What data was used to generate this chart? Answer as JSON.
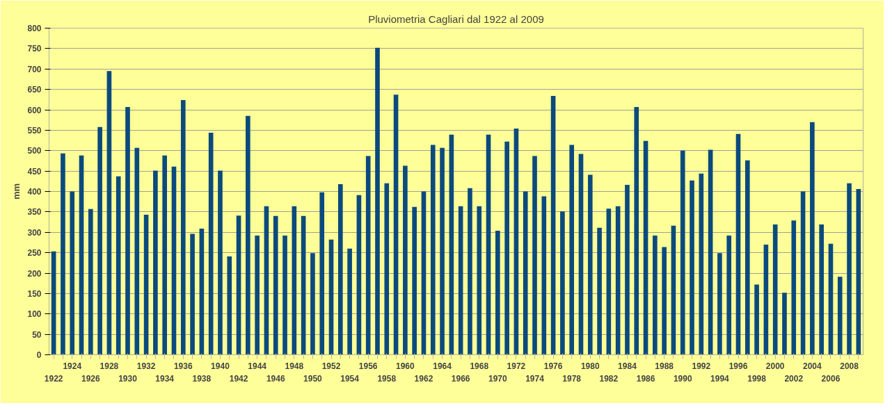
{
  "chart_data": {
    "type": "bar",
    "title": "Pluviometria Cagliari dal 1922 al 2009",
    "ylabel": "mm",
    "color": "#0b4a7d",
    "categories": [
      "1922",
      null,
      "1924",
      null,
      "1926",
      null,
      "1928",
      null,
      "1930",
      null,
      "1932",
      null,
      "1934",
      null,
      "1936",
      null,
      "1938",
      null,
      "1940",
      null,
      "1942",
      null,
      "1944",
      null,
      "1946",
      null,
      "1948",
      null,
      "1950",
      null,
      "1952",
      null,
      "1954",
      null,
      "1956",
      null,
      "1958",
      null,
      "1960",
      null,
      "1962",
      null,
      "1964",
      null,
      "1966",
      null,
      "1968",
      null,
      "1970",
      null,
      "1972",
      null,
      "1974",
      null,
      "1976",
      null,
      "1978",
      null,
      "1980",
      null,
      "1982",
      null,
      "1984",
      null,
      "1986",
      null,
      "1988",
      null,
      "1990",
      null,
      "1992",
      null,
      "1994",
      null,
      "1996",
      null,
      "1998",
      null,
      "2000",
      null,
      "2002",
      null,
      "2004",
      null,
      "2006",
      null,
      "2008",
      null
    ],
    "values": [
      253,
      493,
      400,
      488,
      357,
      558,
      695,
      437,
      607,
      507,
      343,
      451,
      488,
      461,
      624,
      296,
      309,
      544,
      451,
      241,
      341,
      585,
      292,
      364,
      340,
      292,
      364,
      340,
      249,
      398,
      282,
      418,
      260,
      391,
      487,
      752,
      420,
      637,
      463,
      362,
      400,
      514,
      507,
      539,
      364,
      408,
      364,
      539,
      304,
      522,
      554,
      400,
      487,
      388,
      634,
      351,
      514,
      492,
      441,
      311,
      358,
      364,
      416,
      607,
      524,
      292,
      264,
      316,
      500,
      427,
      444,
      502,
      249,
      292,
      541,
      476,
      172,
      270,
      319,
      152,
      329,
      400,
      570,
      319,
      272,
      191,
      420,
      406
    ],
    "ylim": [
      0,
      800
    ],
    "yticks": [
      0,
      50,
      100,
      150,
      200,
      250,
      300,
      350,
      400,
      450,
      500,
      550,
      600,
      650,
      700,
      750,
      800
    ],
    "grid": "y"
  }
}
